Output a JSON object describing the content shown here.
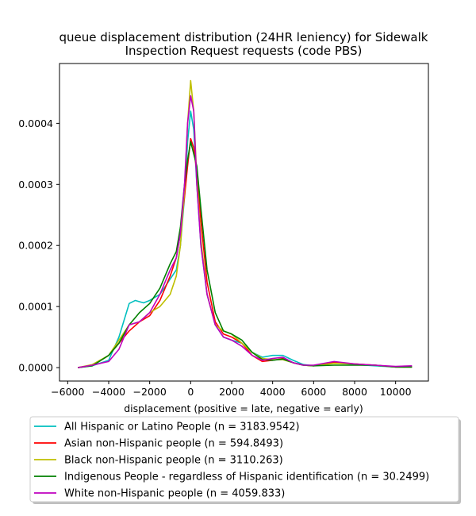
{
  "chart_data": {
    "type": "line",
    "title": "queue displacement distribution (24HR leniency) for Sidewalk Inspection Request  requests (code PBS)",
    "title_lines": [
      "queue displacement distribution (24HR leniency) for Sidewalk",
      "Inspection Request  requests (code PBS)"
    ],
    "xlabel": "displacement (positive = late, negative = early)",
    "ylabel": "",
    "xlim": [
      -6400,
      11600
    ],
    "ylim": [
      -2.2e-05,
      0.000498
    ],
    "x_ticks": [
      -6000,
      -4000,
      -2000,
      0,
      2000,
      4000,
      6000,
      8000,
      10000
    ],
    "x_tick_labels": [
      "−6000",
      "−4000",
      "−2000",
      "0",
      "2000",
      "4000",
      "6000",
      "8000",
      "10000"
    ],
    "y_ticks": [
      0,
      0.0001,
      0.0002,
      0.0003,
      0.0004
    ],
    "y_tick_labels": [
      "0.0000",
      "0.0001",
      "0.0002",
      "0.0003",
      "0.0004"
    ],
    "grid": false,
    "legend_position": "below",
    "series": [
      {
        "name": "All Hispanic or Latino People (n = 3183.9542)",
        "color": "#00bfbf",
        "points": [
          [
            -5500,
            0
          ],
          [
            -4800,
            3e-06
          ],
          [
            -4000,
            1.2e-05
          ],
          [
            -3500,
            5e-05
          ],
          [
            -3000,
            0.000105
          ],
          [
            -2700,
            0.00011
          ],
          [
            -2300,
            0.000106
          ],
          [
            -2000,
            0.00011
          ],
          [
            -1500,
            0.00012
          ],
          [
            -1000,
            0.000145
          ],
          [
            -700,
            0.00016
          ],
          [
            -500,
            0.0002
          ],
          [
            -300,
            0.00028
          ],
          [
            -150,
            0.00037
          ],
          [
            0,
            0.00042
          ],
          [
            150,
            0.00039
          ],
          [
            300,
            0.0003
          ],
          [
            500,
            0.0002
          ],
          [
            800,
            0.00012
          ],
          [
            1200,
            7e-05
          ],
          [
            1600,
            5e-05
          ],
          [
            2000,
            4.5e-05
          ],
          [
            2500,
            4e-05
          ],
          [
            3000,
            2.5e-05
          ],
          [
            3500,
            1.7e-05
          ],
          [
            4000,
            2e-05
          ],
          [
            4500,
            2e-05
          ],
          [
            5000,
            1.2e-05
          ],
          [
            5500,
            5e-06
          ],
          [
            6000,
            3e-06
          ],
          [
            7000,
            8e-06
          ],
          [
            8000,
            5e-06
          ],
          [
            9000,
            3e-06
          ],
          [
            10000,
            1e-06
          ],
          [
            10800,
            1e-06
          ]
        ]
      },
      {
        "name": "Asian non-Hispanic people (n = 594.8493)",
        "color": "#ff0000",
        "points": [
          [
            -5500,
            0
          ],
          [
            -4800,
            4e-06
          ],
          [
            -4000,
            2e-05
          ],
          [
            -3500,
            4e-05
          ],
          [
            -3000,
            6e-05
          ],
          [
            -2500,
            7.5e-05
          ],
          [
            -2000,
            8.5e-05
          ],
          [
            -1500,
            0.00011
          ],
          [
            -1000,
            0.00015
          ],
          [
            -700,
            0.00018
          ],
          [
            -500,
            0.00022
          ],
          [
            -300,
            0.00028
          ],
          [
            -150,
            0.00033
          ],
          [
            0,
            0.000375
          ],
          [
            150,
            0.00036
          ],
          [
            300,
            0.00032
          ],
          [
            500,
            0.00024
          ],
          [
            800,
            0.00014
          ],
          [
            1200,
            7.5e-05
          ],
          [
            1600,
            5.5e-05
          ],
          [
            2000,
            5e-05
          ],
          [
            2500,
            4e-05
          ],
          [
            3000,
            2e-05
          ],
          [
            3500,
            1e-05
          ],
          [
            4000,
            1.2e-05
          ],
          [
            4500,
            1.5e-05
          ],
          [
            5000,
            8e-06
          ],
          [
            5500,
            4e-06
          ],
          [
            6000,
            3e-06
          ],
          [
            7000,
            9e-06
          ],
          [
            8000,
            6e-06
          ],
          [
            9000,
            4e-06
          ],
          [
            10000,
            1e-06
          ],
          [
            10800,
            1e-06
          ]
        ]
      },
      {
        "name": "Black non-Hispanic people (n = 3110.263)",
        "color": "#bfbf00",
        "points": [
          [
            -5500,
            0
          ],
          [
            -4800,
            5e-06
          ],
          [
            -4000,
            2e-05
          ],
          [
            -3500,
            4.5e-05
          ],
          [
            -3000,
            7e-05
          ],
          [
            -2500,
            7.5e-05
          ],
          [
            -2000,
            9e-05
          ],
          [
            -1500,
            0.0001
          ],
          [
            -1000,
            0.00012
          ],
          [
            -700,
            0.00015
          ],
          [
            -500,
            0.0002
          ],
          [
            -300,
            0.00029
          ],
          [
            -150,
            0.0004
          ],
          [
            0,
            0.00047
          ],
          [
            150,
            0.00042
          ],
          [
            300,
            0.00031
          ],
          [
            500,
            0.00021
          ],
          [
            800,
            0.00012
          ],
          [
            1200,
            7e-05
          ],
          [
            1600,
            6e-05
          ],
          [
            2000,
            5.5e-05
          ],
          [
            2500,
            4e-05
          ],
          [
            3000,
            2.5e-05
          ],
          [
            3500,
            1.5e-05
          ],
          [
            4000,
            1.3e-05
          ],
          [
            4500,
            1.3e-05
          ],
          [
            5000,
            8e-06
          ],
          [
            5500,
            4e-06
          ],
          [
            6000,
            3e-06
          ],
          [
            7000,
            7e-06
          ],
          [
            8000,
            6e-06
          ],
          [
            9000,
            4e-06
          ],
          [
            10000,
            1e-06
          ],
          [
            10800,
            1e-06
          ]
        ]
      },
      {
        "name": "Indigenous People - regardless of Hispanic identification (n = 30.2499)",
        "color": "#008000",
        "points": [
          [
            -5500,
            0
          ],
          [
            -4800,
            3e-06
          ],
          [
            -4000,
            2e-05
          ],
          [
            -3500,
            4e-05
          ],
          [
            -3000,
            7e-05
          ],
          [
            -2500,
            9e-05
          ],
          [
            -2000,
            0.000105
          ],
          [
            -1500,
            0.00013
          ],
          [
            -1000,
            0.00017
          ],
          [
            -700,
            0.00019
          ],
          [
            -500,
            0.00023
          ],
          [
            -300,
            0.0003
          ],
          [
            -150,
            0.00034
          ],
          [
            0,
            0.00037
          ],
          [
            150,
            0.00035
          ],
          [
            300,
            0.00033
          ],
          [
            500,
            0.00026
          ],
          [
            800,
            0.00016
          ],
          [
            1200,
            9e-05
          ],
          [
            1600,
            6e-05
          ],
          [
            2000,
            5.5e-05
          ],
          [
            2500,
            4.5e-05
          ],
          [
            3000,
            2.5e-05
          ],
          [
            3500,
            1.3e-05
          ],
          [
            4000,
            1.2e-05
          ],
          [
            4500,
            1.4e-05
          ],
          [
            5000,
            8e-06
          ],
          [
            5500,
            4e-06
          ],
          [
            6000,
            3e-06
          ],
          [
            7000,
            4e-06
          ],
          [
            8000,
            4e-06
          ],
          [
            9000,
            4e-06
          ],
          [
            10000,
            1e-06
          ],
          [
            10800,
            1e-06
          ]
        ]
      },
      {
        "name": "White non-Hispanic people (n = 4059.833)",
        "color": "#bf00bf",
        "points": [
          [
            -5500,
            0
          ],
          [
            -4800,
            4e-06
          ],
          [
            -4000,
            1e-05
          ],
          [
            -3500,
            3e-05
          ],
          [
            -3000,
            7e-05
          ],
          [
            -2500,
            7.5e-05
          ],
          [
            -2000,
            9e-05
          ],
          [
            -1500,
            0.00012
          ],
          [
            -1000,
            0.00016
          ],
          [
            -700,
            0.00018
          ],
          [
            -500,
            0.00022
          ],
          [
            -300,
            0.0003
          ],
          [
            -150,
            0.0004
          ],
          [
            0,
            0.000445
          ],
          [
            150,
            0.00042
          ],
          [
            300,
            0.0003
          ],
          [
            500,
            0.0002
          ],
          [
            800,
            0.00012
          ],
          [
            1200,
            7e-05
          ],
          [
            1600,
            5e-05
          ],
          [
            2000,
            4.5e-05
          ],
          [
            2500,
            3.5e-05
          ],
          [
            3000,
            2e-05
          ],
          [
            3500,
            1.2e-05
          ],
          [
            4000,
            1.5e-05
          ],
          [
            4500,
            1.7e-05
          ],
          [
            5000,
            8e-06
          ],
          [
            5500,
            4e-06
          ],
          [
            6000,
            4e-06
          ],
          [
            7000,
            1e-05
          ],
          [
            8000,
            6e-06
          ],
          [
            9000,
            4e-06
          ],
          [
            10000,
            2e-06
          ],
          [
            10800,
            3e-06
          ]
        ]
      }
    ]
  }
}
